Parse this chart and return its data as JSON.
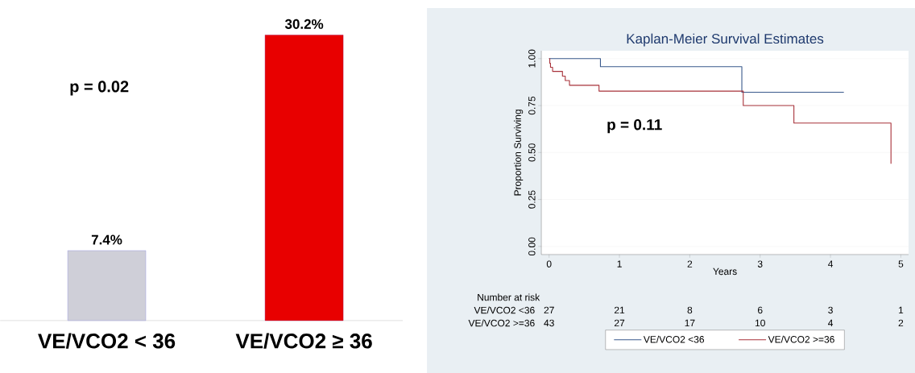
{
  "chart_data": [
    {
      "type": "bar",
      "categories": [
        "VE/VCO2 < 36",
        "VE/VCO2 ≥ 36"
      ],
      "values": [
        7.4,
        30.2
      ],
      "colors": [
        "#cfcfd8",
        "#e80000"
      ],
      "value_labels": [
        "7.4%",
        "30.2%"
      ],
      "annotations": [
        "p = 0.02"
      ],
      "tick_labels": "x"
    },
    {
      "type": "step",
      "title": "Kaplan-Meier Survival Estimates",
      "xlabel": "Years",
      "ylabel": "Proportion Surviving",
      "xlim": [
        -0.11,
        5.11
      ],
      "ylim": [
        -0.043,
        1.042
      ],
      "xticks": [
        0,
        1,
        2,
        3,
        4,
        5
      ],
      "yticks": [
        {
          "value": 0,
          "label": "0.00"
        },
        {
          "value": 0.25,
          "label": "0.25"
        },
        {
          "value": 0.5,
          "label": "0.50"
        },
        {
          "value": 0.75,
          "label": "0.75"
        },
        {
          "value": 1,
          "label": "1.00"
        }
      ],
      "grid": "y",
      "legend": "bottom",
      "series": [
        {
          "name": "VE/VCO2 <36",
          "color": "#3a5a8c",
          "x": [
            0,
            0.73,
            2.74,
            4.19
          ],
          "values": [
            1,
            0.957,
            0.821,
            0.821
          ]
        },
        {
          "name": "VE/VCO2 >=36",
          "color": "#a8323a",
          "x": [
            0,
            0.01,
            0.02,
            0.05,
            0.19,
            0.23,
            0.29,
            0.71,
            2.76,
            3.48,
            4.86
          ],
          "values": [
            1,
            0.975,
            0.954,
            0.932,
            0.907,
            0.883,
            0.858,
            0.827,
            0.75,
            0.657,
            0.44
          ]
        }
      ],
      "annotations": [
        "p = 0.11",
        "Number at risk",
        "VE/VCO2 <36",
        "27",
        "21",
        "8",
        "6",
        "3",
        "1",
        "VE/VCO2 >=36",
        "43",
        "27",
        "17",
        "10",
        "4",
        "2"
      ]
    }
  ]
}
